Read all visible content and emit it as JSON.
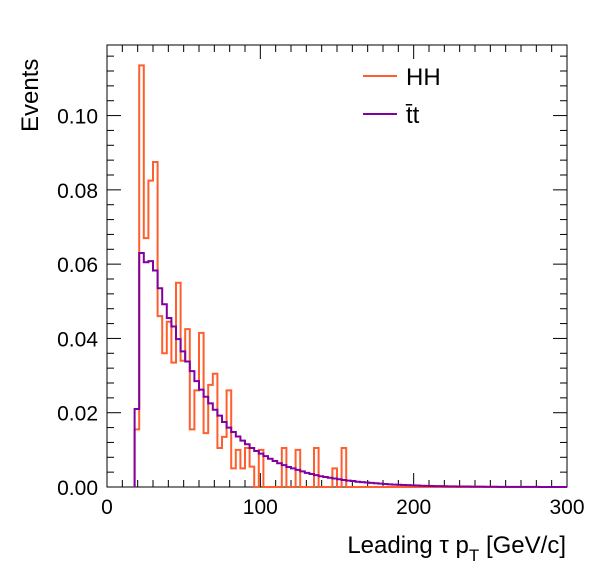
{
  "chart_data": {
    "type": "histogram",
    "xlabel": "Leading τ p",
    "xlabel_sub": "T",
    "xlabel_unit": " [GeV/c]",
    "ylabel": "Events",
    "xlim": [
      0,
      300
    ],
    "ylim": [
      0,
      0.119
    ],
    "x_ticks": [
      0,
      100,
      200,
      300
    ],
    "x_tick_labels": [
      "0",
      "100",
      "200",
      "300"
    ],
    "y_ticks": [
      0,
      0.02,
      0.04,
      0.06,
      0.08,
      0.1
    ],
    "y_tick_labels": [
      "0.00",
      "0.02",
      "0.04",
      "0.06",
      "0.08",
      "0.10"
    ],
    "bin_width": 3,
    "legend_placement": "top-right",
    "series": [
      {
        "name": "HH",
        "color": "#ff5f2e",
        "bin_start": 18,
        "values": [
          0.0155,
          0.1135,
          0.067,
          0.0825,
          0.0875,
          0.046,
          0.036,
          0.0445,
          0.0335,
          0.055,
          0.034,
          0.0425,
          0.0155,
          0.026,
          0.0415,
          0.0145,
          0.0275,
          0.0305,
          0.0105,
          0.0135,
          0.026,
          0.005,
          0.01,
          0.005,
          0.0105,
          0.0055,
          0.0,
          0.01,
          0.0,
          0.0,
          0.0,
          0.0,
          0.0105,
          0.0,
          0.0,
          0.01,
          0.0,
          0.0,
          0.0,
          0.0105,
          0.0,
          0.0,
          0.0,
          0.005,
          0.0,
          0.0105,
          0.0,
          0.0,
          0.0
        ]
      },
      {
        "name": "t̅t̅",
        "display_name": "tt",
        "color": "#8000a0",
        "bin_start": 18,
        "values": [
          0.021,
          0.063,
          0.0605,
          0.0608,
          0.0583,
          0.0535,
          0.0492,
          0.0455,
          0.0432,
          0.0398,
          0.0365,
          0.0338,
          0.0312,
          0.0285,
          0.0262,
          0.0243,
          0.0225,
          0.0208,
          0.0192,
          0.0175,
          0.016,
          0.0148,
          0.0136,
          0.0125,
          0.0115,
          0.0105,
          0.0097,
          0.009,
          0.0083,
          0.0076,
          0.007,
          0.0064,
          0.0059,
          0.0054,
          0.005,
          0.0046,
          0.0042,
          0.0038,
          0.0035,
          0.0032,
          0.0029,
          0.0027,
          0.0025,
          0.0023,
          0.0021,
          0.0019,
          0.0017,
          0.0016,
          0.0014,
          0.0013,
          0.0012,
          0.0011,
          0.001,
          0.0009,
          0.0008,
          0.0007,
          0.00065,
          0.0006,
          0.00055,
          0.0005,
          0.00045,
          0.0004,
          0.00035,
          0.0003,
          0.00028,
          0.00025,
          0.00022,
          0.0002,
          0.00018,
          0.00016,
          0.00015,
          0.00013,
          0.00012,
          0.0001,
          0.0001,
          9e-05,
          8e-05,
          7e-05,
          6e-05,
          5e-05,
          5e-05,
          4e-05,
          4e-05,
          3e-05,
          3e-05,
          2e-05,
          2e-05,
          2e-05,
          1e-05,
          1e-05,
          1e-05
        ]
      }
    ],
    "legend": [
      {
        "label": "HH",
        "color": "#ff5f2e"
      },
      {
        "label": "t̄t",
        "color": "#8000a0"
      }
    ]
  }
}
